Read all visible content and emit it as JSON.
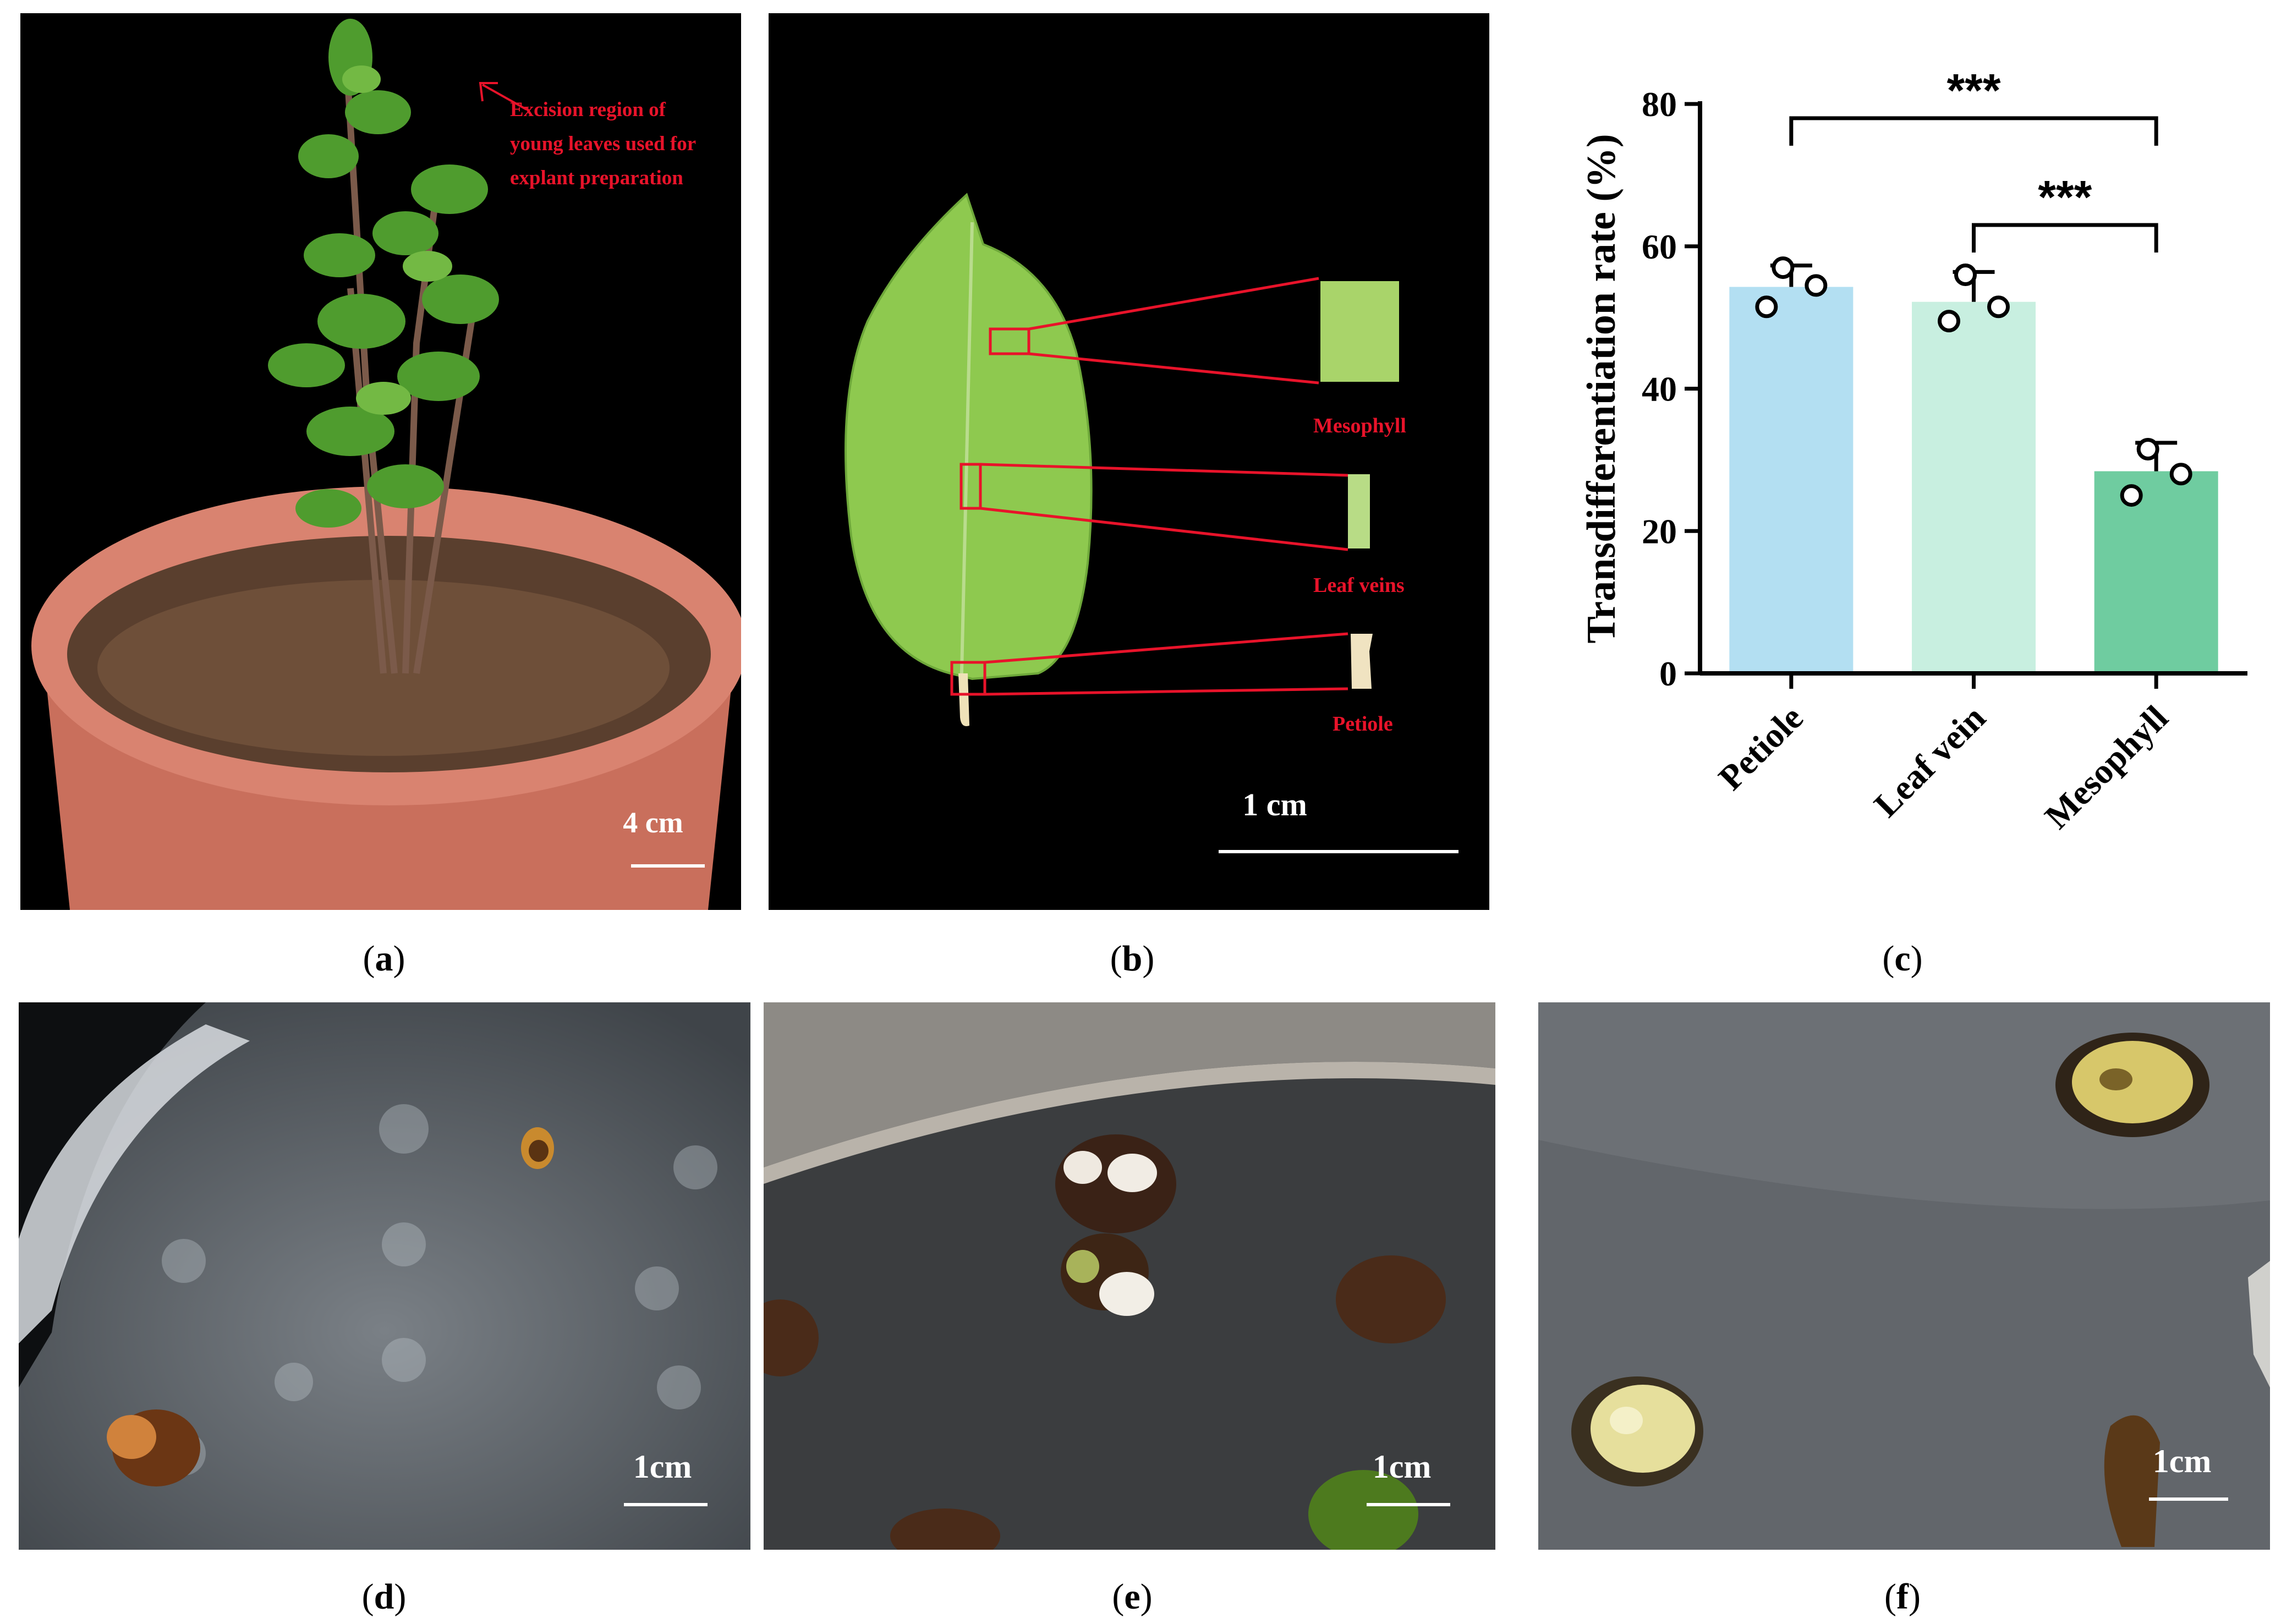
{
  "panels": {
    "a": {
      "caption_label": "a",
      "annotation_lines": [
        "Excision region of",
        "young leaves used for",
        "explant preparation"
      ],
      "scale_label": "4 cm"
    },
    "b": {
      "caption_label": "b",
      "labels": {
        "mesophyll": "Mesophyll",
        "leaf_veins": "Leaf veins",
        "petiole": "Petiole"
      },
      "scale_label": "1 cm"
    },
    "c": {
      "caption_label": "c"
    },
    "d": {
      "caption_label": "d",
      "scale_label": "1cm"
    },
    "e": {
      "caption_label": "e",
      "scale_label": "1cm"
    },
    "f": {
      "caption_label": "f",
      "scale_label": "1cm"
    }
  },
  "colors": {
    "annotation_red": "#e8132a",
    "bar_petiole": "#b3dff2",
    "bar_leaf_vein": "#c8efe0",
    "bar_mesophyll": "#6fcca0"
  },
  "chart_data": {
    "type": "bar",
    "title": "",
    "xlabel": "",
    "ylabel": "Transdifferentiation rate (%)",
    "categories": [
      "Petiole",
      "Leaf vein",
      "Mesophyll"
    ],
    "values": [
      54.3,
      52.2,
      28.4
    ],
    "errors": [
      3.0,
      4.2,
      4.0
    ],
    "points": [
      [
        57,
        51.5,
        54.5
      ],
      [
        56,
        49.5,
        51.5
      ],
      [
        31.5,
        25,
        28
      ]
    ],
    "ylim": [
      0,
      80
    ],
    "yticks": [
      0,
      20,
      40,
      60,
      80
    ],
    "grid": false,
    "significance": [
      {
        "from": "Petiole",
        "to": "Mesophyll",
        "label": "***"
      },
      {
        "from": "Leaf vein",
        "to": "Mesophyll",
        "label": "***"
      }
    ]
  }
}
